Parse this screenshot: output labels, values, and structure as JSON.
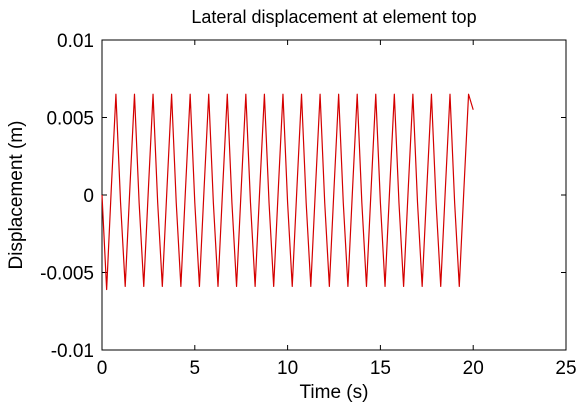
{
  "chart_data": {
    "type": "line",
    "title": "Lateral displacement at element top",
    "xlabel": "Time (s)",
    "ylabel": "Displacement (m)",
    "xlim": [
      0,
      25
    ],
    "ylim": [
      -0.01,
      0.01
    ],
    "xticks": [
      0,
      5,
      10,
      15,
      20,
      25
    ],
    "xtick_labels": [
      "0",
      "5",
      "10",
      "15",
      "20",
      "25"
    ],
    "yticks": [
      -0.01,
      -0.005,
      0,
      0.005,
      0.01
    ],
    "ytick_labels": [
      "-0.01",
      "-0.005",
      "0",
      "0.005",
      "0.01"
    ],
    "grid": false,
    "series": [
      {
        "color": "#d40000",
        "x": [
          0,
          0.25,
          0.5,
          0.75,
          1.0,
          1.25,
          1.5,
          1.75,
          2.0,
          2.25,
          2.5,
          2.75,
          3.0,
          3.25,
          3.5,
          3.75,
          4.0,
          4.25,
          4.5,
          4.75,
          5.0,
          5.25,
          5.5,
          5.75,
          6.0,
          6.25,
          6.5,
          6.75,
          7.0,
          7.25,
          7.5,
          7.75,
          8.0,
          8.25,
          8.5,
          8.75,
          9.0,
          9.25,
          9.5,
          9.75,
          10.0,
          10.25,
          10.5,
          10.75,
          11.0,
          11.25,
          11.5,
          11.75,
          12.0,
          12.25,
          12.5,
          12.75,
          13.0,
          13.25,
          13.5,
          13.75,
          14.0,
          14.25,
          14.5,
          14.75,
          15.0,
          15.25,
          15.5,
          15.75,
          16.0,
          16.25,
          16.5,
          16.75,
          17.0,
          17.25,
          17.5,
          17.75,
          18.0,
          18.25,
          18.5,
          18.75,
          19.0,
          19.25,
          19.5,
          19.75,
          20.0
        ],
        "y": [
          0,
          -0.0061,
          0.0004,
          0.0065,
          -0.0005,
          -0.0059,
          0.0004,
          0.0065,
          -0.0005,
          -0.0059,
          0.0004,
          0.0065,
          -0.0005,
          -0.0059,
          0.0004,
          0.0065,
          -0.0005,
          -0.0059,
          0.0004,
          0.0065,
          -0.0005,
          -0.0059,
          0.0004,
          0.0065,
          -0.0005,
          -0.0059,
          0.0004,
          0.0065,
          -0.0005,
          -0.0059,
          0.0004,
          0.0065,
          -0.0005,
          -0.0059,
          0.0004,
          0.0065,
          -0.0005,
          -0.0059,
          0.0004,
          0.0065,
          -0.0005,
          -0.0059,
          0.0004,
          0.0065,
          -0.0005,
          -0.0059,
          0.0004,
          0.0065,
          -0.0005,
          -0.0059,
          0.0004,
          0.0065,
          -0.0005,
          -0.0059,
          0.0004,
          0.0065,
          -0.0005,
          -0.0059,
          0.0004,
          0.0065,
          -0.0005,
          -0.0059,
          0.0004,
          0.0065,
          -0.0005,
          -0.0059,
          0.0004,
          0.0065,
          -0.0005,
          -0.0059,
          0.0004,
          0.0065,
          -0.0005,
          -0.0059,
          0.0004,
          0.0065,
          -0.0005,
          -0.0059,
          0.0004,
          0.0065,
          0.0055
        ]
      }
    ]
  }
}
